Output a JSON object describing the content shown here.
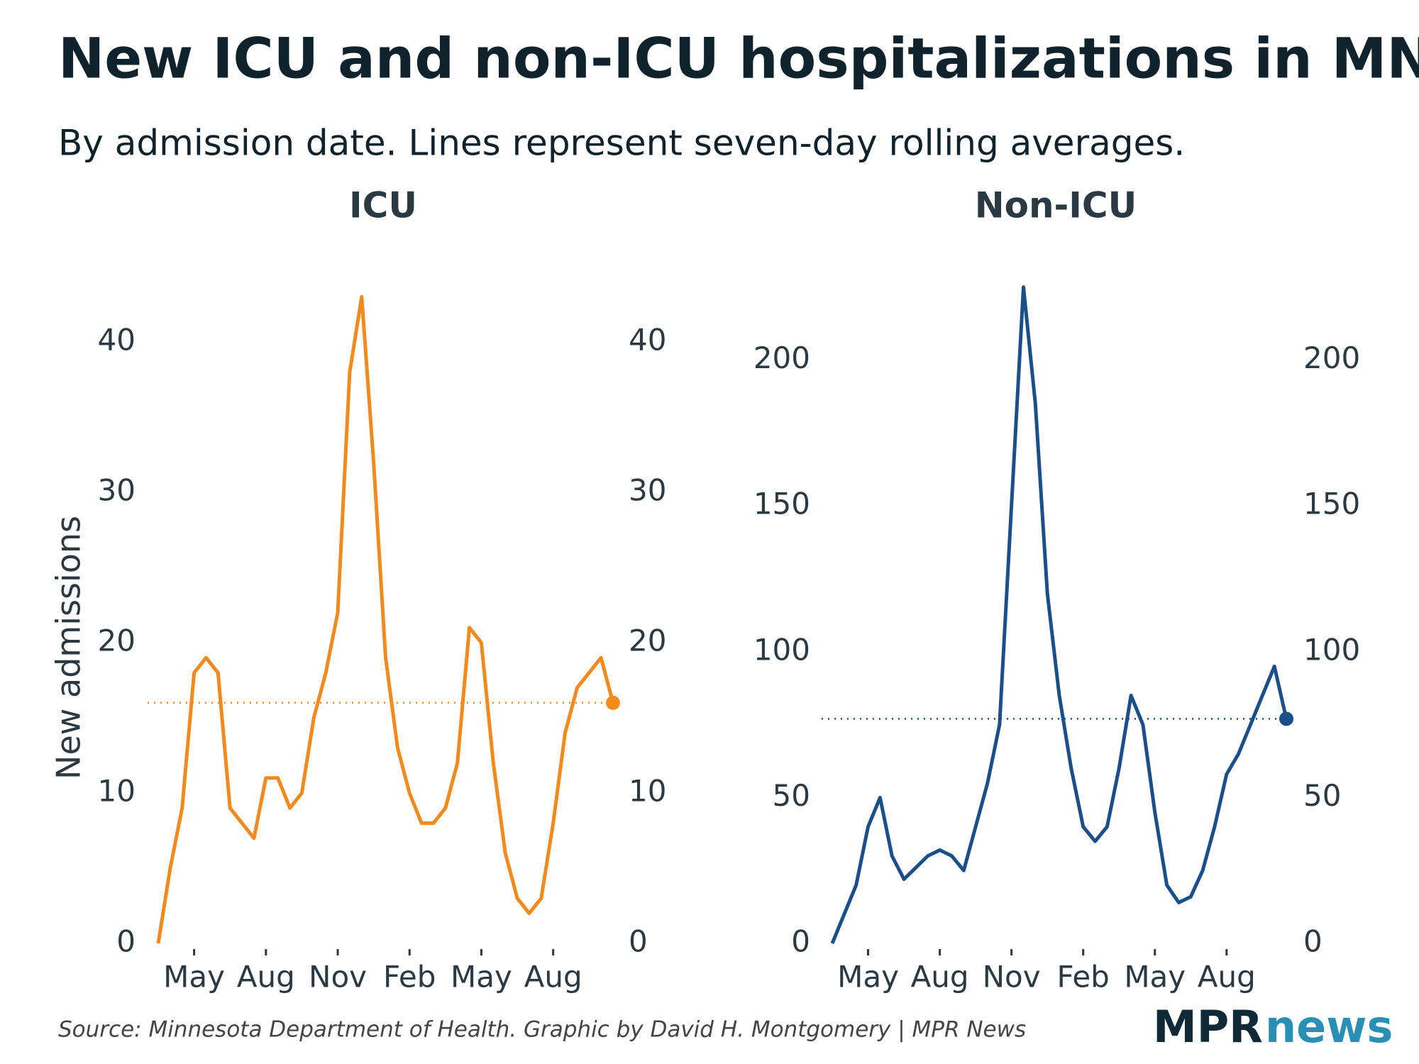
{
  "title": "New ICU and non-ICU hospitalizations in MN",
  "subtitle": "By admission date. Lines represent seven-day rolling averages.",
  "source": "Source: Minnesota Department of Health. Graphic by David H. Montgomery | MPR News",
  "logo": [
    "MPR",
    "news"
  ],
  "chart_data": [
    {
      "type": "line",
      "title": "ICU",
      "y_label": "New admissions",
      "color": "#f28a1e",
      "categories": [
        null,
        null,
        null,
        "May",
        null,
        null,
        null,
        null,
        null,
        "Aug",
        null,
        null,
        null,
        null,
        null,
        "Nov",
        null,
        null,
        null,
        null,
        null,
        "Feb",
        null,
        null,
        null,
        null,
        null,
        "May",
        null,
        null,
        null,
        null,
        null,
        "Aug",
        null,
        null,
        null,
        null,
        null
      ],
      "values": [
        0,
        5,
        9,
        18,
        19,
        18,
        9,
        8,
        7,
        11,
        11,
        9,
        10,
        15,
        18,
        22,
        38,
        43,
        32,
        19,
        13,
        10,
        8,
        8,
        9,
        12,
        21,
        20,
        12,
        6,
        3,
        2,
        3,
        8,
        14,
        17,
        18,
        19,
        16
      ],
      "ylim": [
        0,
        45
      ],
      "yticks": [
        0,
        10,
        20,
        30,
        40
      ],
      "grid": false
    },
    {
      "type": "line",
      "title": "Non-ICU",
      "color": "#1b4f8a",
      "categories": [
        null,
        null,
        null,
        "May",
        null,
        null,
        null,
        null,
        null,
        "Aug",
        null,
        null,
        null,
        null,
        null,
        "Nov",
        null,
        null,
        null,
        null,
        null,
        "Feb",
        null,
        null,
        null,
        null,
        null,
        "May",
        null,
        null,
        null,
        null,
        null,
        "Aug",
        null,
        null,
        null,
        null,
        null
      ],
      "values": [
        0,
        10,
        20,
        40,
        50,
        30,
        22,
        26,
        30,
        32,
        30,
        25,
        40,
        55,
        75,
        150,
        225,
        185,
        120,
        85,
        60,
        40,
        35,
        40,
        60,
        85,
        75,
        45,
        20,
        14,
        16,
        25,
        40,
        58,
        65,
        75,
        85,
        95,
        77
      ],
      "ylim": [
        0,
        232
      ],
      "yticks": [
        0,
        50,
        100,
        150,
        200
      ],
      "grid": false
    }
  ]
}
